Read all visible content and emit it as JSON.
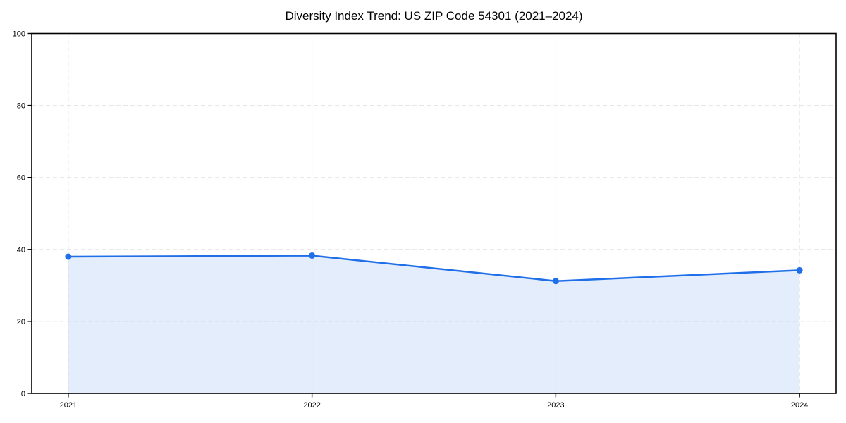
{
  "chart_data": {
    "type": "area",
    "title": "Diversity Index Trend: US ZIP Code 54301 (2021–2024)",
    "x": [
      2021,
      2022,
      2023,
      2024
    ],
    "values": [
      38.0,
      38.3,
      31.2,
      34.2
    ],
    "xlabel": "",
    "ylabel": "",
    "ylim": [
      0,
      100
    ],
    "yticks": [
      0,
      20,
      40,
      60,
      80,
      100
    ],
    "xticks": [
      2021,
      2022,
      2023,
      2024
    ],
    "grid": true,
    "grid_style": "dashed",
    "legend": false,
    "colors": {
      "line": "#1f6fe8",
      "fill": "#1f6fe8",
      "fill_opacity": 0.12,
      "grid": "#e2e2e2",
      "axis": "#000000",
      "background": "#ffffff",
      "text": "#000000"
    }
  }
}
